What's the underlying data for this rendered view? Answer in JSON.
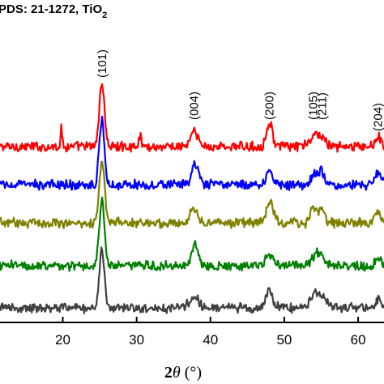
{
  "chart_data": {
    "type": "line",
    "header": {
      "prefix": "PDS: 21-1272, TiO",
      "subscript": "2"
    },
    "xlabel": {
      "symbol": "2",
      "theta": "θ",
      "unit": " (°)"
    },
    "xlim": [
      11.5,
      63.5
    ],
    "xticks": [
      {
        "value": 20,
        "label": "20"
      },
      {
        "value": 30,
        "label": "30"
      },
      {
        "value": 40,
        "label": "40"
      },
      {
        "value": 50,
        "label": "50"
      },
      {
        "value": 60,
        "label": "60"
      }
    ],
    "peak_labels": [
      {
        "label": "(101)",
        "x": 25.3
      },
      {
        "label": "(004)",
        "x": 37.8
      },
      {
        "label": "(200)",
        "x": 48.0
      },
      {
        "label": "(105)",
        "x": 53.9
      },
      {
        "label": "(211)",
        "x": 55.1
      },
      {
        "label": "(204)",
        "x": 62.7
      }
    ],
    "series": [
      {
        "color": "#ff0000",
        "baseline": 181,
        "peaks": [
          {
            "x": 25.3,
            "h": 78,
            "w": 0.35
          },
          {
            "x": 19.8,
            "h": 22,
            "w": 0.12
          },
          {
            "x": 30.5,
            "h": 12,
            "w": 0.2
          },
          {
            "x": 37.8,
            "h": 18,
            "w": 0.5
          },
          {
            "x": 48.0,
            "h": 30,
            "w": 0.4
          },
          {
            "x": 54.5,
            "h": 16,
            "w": 0.8
          },
          {
            "x": 62.7,
            "h": 12,
            "w": 0.4
          }
        ]
      },
      {
        "color": "#0000ff",
        "baseline": 228,
        "peaks": [
          {
            "x": 25.3,
            "h": 80,
            "w": 0.35
          },
          {
            "x": 37.9,
            "h": 24,
            "w": 0.45
          },
          {
            "x": 48.0,
            "h": 18,
            "w": 0.45
          },
          {
            "x": 54.0,
            "h": 12,
            "w": 0.4
          },
          {
            "x": 55.0,
            "h": 16,
            "w": 0.4
          },
          {
            "x": 62.7,
            "h": 14,
            "w": 0.4
          }
        ]
      },
      {
        "color": "#808000",
        "baseline": 275,
        "peaks": [
          {
            "x": 25.3,
            "h": 76,
            "w": 0.35
          },
          {
            "x": 37.8,
            "h": 18,
            "w": 0.5
          },
          {
            "x": 48.0,
            "h": 26,
            "w": 0.45
          },
          {
            "x": 53.9,
            "h": 18,
            "w": 0.35
          },
          {
            "x": 55.0,
            "h": 16,
            "w": 0.45
          },
          {
            "x": 62.7,
            "h": 12,
            "w": 0.4
          }
        ]
      },
      {
        "color": "#008000",
        "baseline": 328,
        "peaks": [
          {
            "x": 25.3,
            "h": 80,
            "w": 0.35
          },
          {
            "x": 37.9,
            "h": 28,
            "w": 0.45
          },
          {
            "x": 48.0,
            "h": 14,
            "w": 0.45
          },
          {
            "x": 54.5,
            "h": 16,
            "w": 0.7
          },
          {
            "x": 62.7,
            "h": 10,
            "w": 0.4
          }
        ]
      },
      {
        "color": "#404040",
        "baseline": 380,
        "peaks": [
          {
            "x": 25.3,
            "h": 72,
            "w": 0.35
          },
          {
            "x": 37.8,
            "h": 14,
            "w": 0.6
          },
          {
            "x": 48.0,
            "h": 22,
            "w": 0.45
          },
          {
            "x": 54.5,
            "h": 20,
            "w": 0.8
          },
          {
            "x": 62.7,
            "h": 10,
            "w": 0.4
          }
        ]
      }
    ]
  }
}
